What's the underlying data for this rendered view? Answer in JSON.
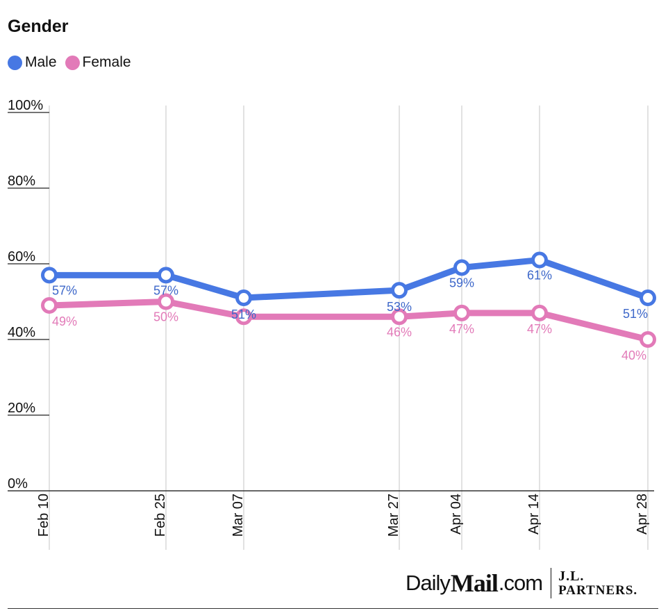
{
  "title": "Gender",
  "legend": [
    {
      "label": "Male",
      "color": "#4778e3"
    },
    {
      "label": "Female",
      "color": "#e27ab8"
    }
  ],
  "chart_data": {
    "type": "line",
    "title": "Gender",
    "categories": [
      "Feb 10",
      "Feb 25",
      "Mar 07",
      "Mar 27",
      "Apr 04",
      "Apr 14",
      "Apr 28"
    ],
    "series": [
      {
        "name": "Male",
        "color": "#4778e3",
        "values": [
          57,
          57,
          51,
          53,
          59,
          61,
          51
        ],
        "labels": [
          "57%",
          "57%",
          "51%",
          "53%",
          "59%",
          "61%",
          "51%"
        ]
      },
      {
        "name": "Female",
        "color": "#e27ab8",
        "values": [
          49,
          50,
          46,
          46,
          47,
          47,
          40
        ],
        "labels": [
          "49%",
          "50%",
          "",
          "46%",
          "47%",
          "47%",
          "40%"
        ]
      }
    ],
    "ylim": [
      0,
      100
    ],
    "yticks": [
      0,
      20,
      40,
      60,
      80,
      100
    ],
    "ytick_labels": [
      "0%",
      "20%",
      "40%",
      "60%",
      "80%",
      "100%"
    ],
    "xlabel": "",
    "ylabel": "",
    "grid": true,
    "legend_position": "top-left"
  },
  "footer": {
    "daily": "Daily",
    "mail": "Mail",
    "com": ".com",
    "partner_top": "J.L.",
    "partner_bottom": "PARTNERS."
  }
}
